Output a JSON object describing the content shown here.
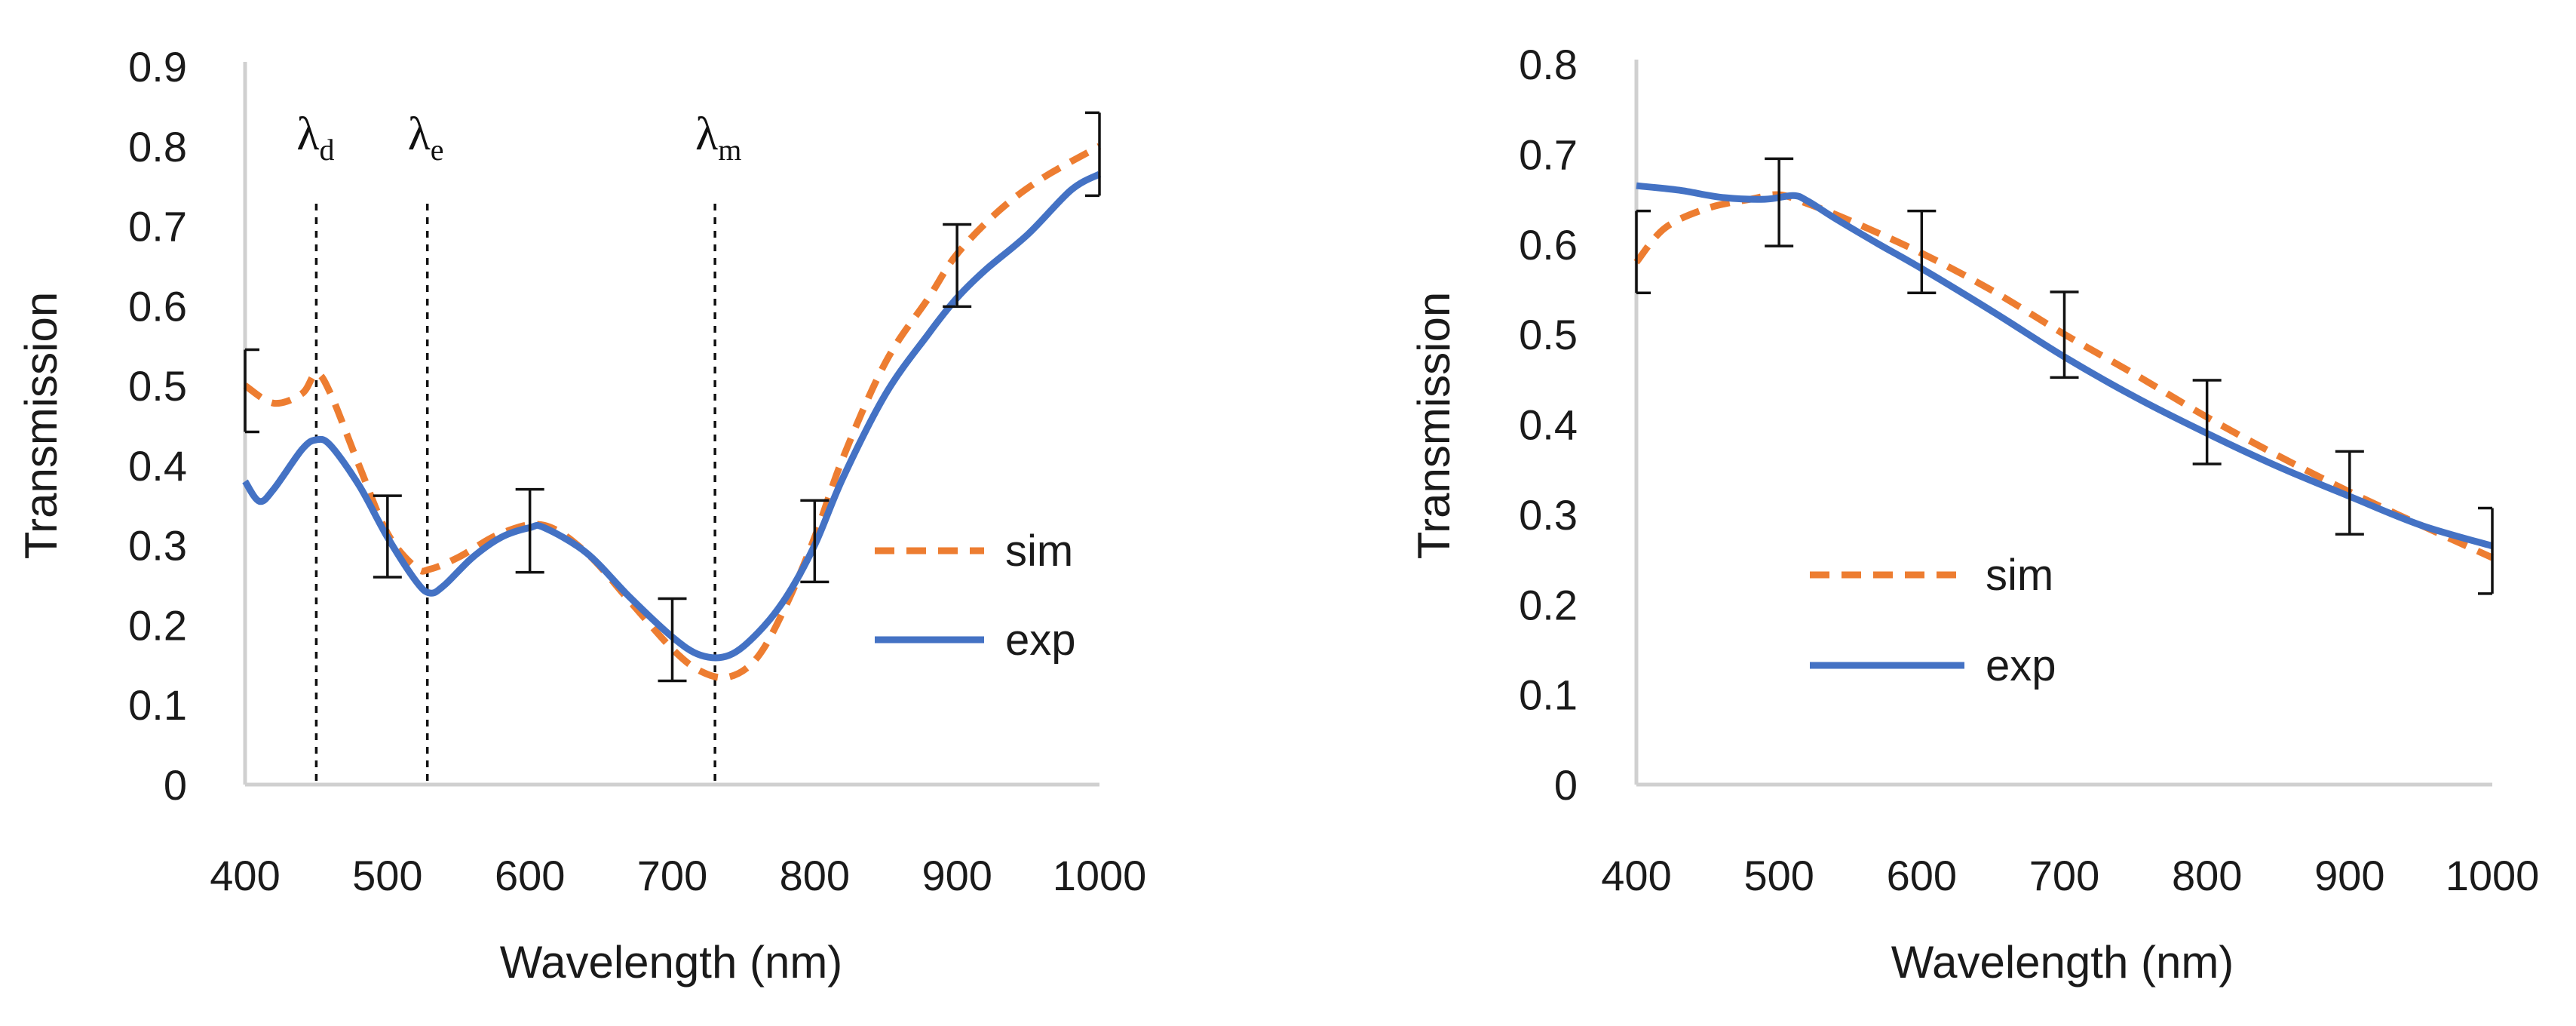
{
  "chart_data": [
    {
      "type": "line",
      "title": "",
      "xlabel": "Wavelength (nm)",
      "ylabel": "Transmission",
      "xlim": [
        400,
        1000
      ],
      "ylim": [
        0,
        0.9
      ],
      "xticks": [
        "400",
        "500",
        "600",
        "700",
        "800",
        "900",
        "1000"
      ],
      "yticks": [
        "0",
        "0.1",
        "0.2",
        "0.3",
        "0.4",
        "0.5",
        "0.6",
        "0.7",
        "0.8",
        "0.9"
      ],
      "legend_position": "right",
      "series": [
        {
          "name": "sim",
          "color": "#ED7D31",
          "style": "dashed",
          "x": [
            400,
            420,
            440,
            450,
            460,
            480,
            500,
            520,
            530,
            550,
            580,
            610,
            640,
            670,
            700,
            720,
            740,
            760,
            780,
            800,
            820,
            850,
            880,
            900,
            930,
            960,
            1000
          ],
          "y": [
            0.5,
            0.478,
            0.49,
            0.515,
            0.49,
            0.4,
            0.315,
            0.272,
            0.27,
            0.285,
            0.315,
            0.325,
            0.29,
            0.23,
            0.17,
            0.142,
            0.135,
            0.16,
            0.225,
            0.31,
            0.41,
            0.53,
            0.61,
            0.665,
            0.72,
            0.76,
            0.8
          ]
        },
        {
          "name": "exp",
          "color": "#4472C4",
          "style": "solid",
          "x": [
            400,
            410,
            420,
            440,
            450,
            460,
            480,
            500,
            520,
            530,
            540,
            560,
            580,
            600,
            610,
            640,
            670,
            700,
            720,
            740,
            760,
            780,
            800,
            820,
            850,
            880,
            900,
            920,
            950,
            980,
            1000
          ],
          "y": [
            0.38,
            0.355,
            0.37,
            0.42,
            0.432,
            0.425,
            0.375,
            0.31,
            0.255,
            0.24,
            0.25,
            0.285,
            0.31,
            0.322,
            0.322,
            0.29,
            0.235,
            0.185,
            0.162,
            0.162,
            0.19,
            0.235,
            0.3,
            0.385,
            0.49,
            0.565,
            0.61,
            0.645,
            0.69,
            0.745,
            0.765
          ]
        }
      ],
      "error_bars": [
        {
          "x": 400,
          "low": 0.442,
          "high": 0.545
        },
        {
          "x": 500,
          "low": 0.26,
          "high": 0.362
        },
        {
          "x": 600,
          "low": 0.266,
          "high": 0.37
        },
        {
          "x": 700,
          "low": 0.13,
          "high": 0.233
        },
        {
          "x": 800,
          "low": 0.254,
          "high": 0.356
        },
        {
          "x": 900,
          "low": 0.599,
          "high": 0.702
        },
        {
          "x": 1000,
          "low": 0.738,
          "high": 0.842
        }
      ],
      "markers": [
        {
          "symbol": "λ",
          "subscript": "d",
          "x": 450
        },
        {
          "symbol": "λ",
          "subscript": "e",
          "x": 528
        },
        {
          "symbol": "λ",
          "subscript": "m",
          "x": 730
        }
      ]
    },
    {
      "type": "line",
      "title": "",
      "xlabel": "Wavelength (nm)",
      "ylabel": "Transmission",
      "xlim": [
        400,
        1000
      ],
      "ylim": [
        0,
        0.8
      ],
      "xticks": [
        "400",
        "500",
        "600",
        "700",
        "800",
        "900",
        "1000"
      ],
      "yticks": [
        "0",
        "0.1",
        "0.2",
        "0.3",
        "0.4",
        "0.5",
        "0.6",
        "0.7",
        "0.8"
      ],
      "legend_position": "center-left",
      "series": [
        {
          "name": "sim",
          "color": "#ED7D31",
          "style": "dashed",
          "x": [
            400,
            420,
            450,
            480,
            500,
            520,
            550,
            600,
            650,
            700,
            750,
            800,
            850,
            900,
            950,
            1000
          ],
          "y": [
            0.58,
            0.618,
            0.64,
            0.65,
            0.655,
            0.645,
            0.626,
            0.59,
            0.548,
            0.5,
            0.455,
            0.408,
            0.365,
            0.325,
            0.288,
            0.252
          ]
        },
        {
          "name": "exp",
          "color": "#4472C4",
          "style": "solid",
          "x": [
            400,
            430,
            460,
            490,
            510,
            520,
            540,
            570,
            600,
            650,
            700,
            750,
            800,
            850,
            900,
            950,
            1000
          ],
          "y": [
            0.665,
            0.66,
            0.652,
            0.65,
            0.654,
            0.648,
            0.628,
            0.6,
            0.573,
            0.525,
            0.475,
            0.43,
            0.39,
            0.353,
            0.32,
            0.288,
            0.265
          ]
        }
      ],
      "error_bars": [
        {
          "x": 400,
          "low": 0.546,
          "high": 0.637
        },
        {
          "x": 500,
          "low": 0.598,
          "high": 0.695
        },
        {
          "x": 600,
          "low": 0.546,
          "high": 0.637
        },
        {
          "x": 700,
          "low": 0.452,
          "high": 0.547
        },
        {
          "x": 800,
          "low": 0.356,
          "high": 0.449
        },
        {
          "x": 900,
          "low": 0.278,
          "high": 0.37
        },
        {
          "x": 1000,
          "low": 0.212,
          "high": 0.307
        }
      ],
      "markers": []
    }
  ]
}
